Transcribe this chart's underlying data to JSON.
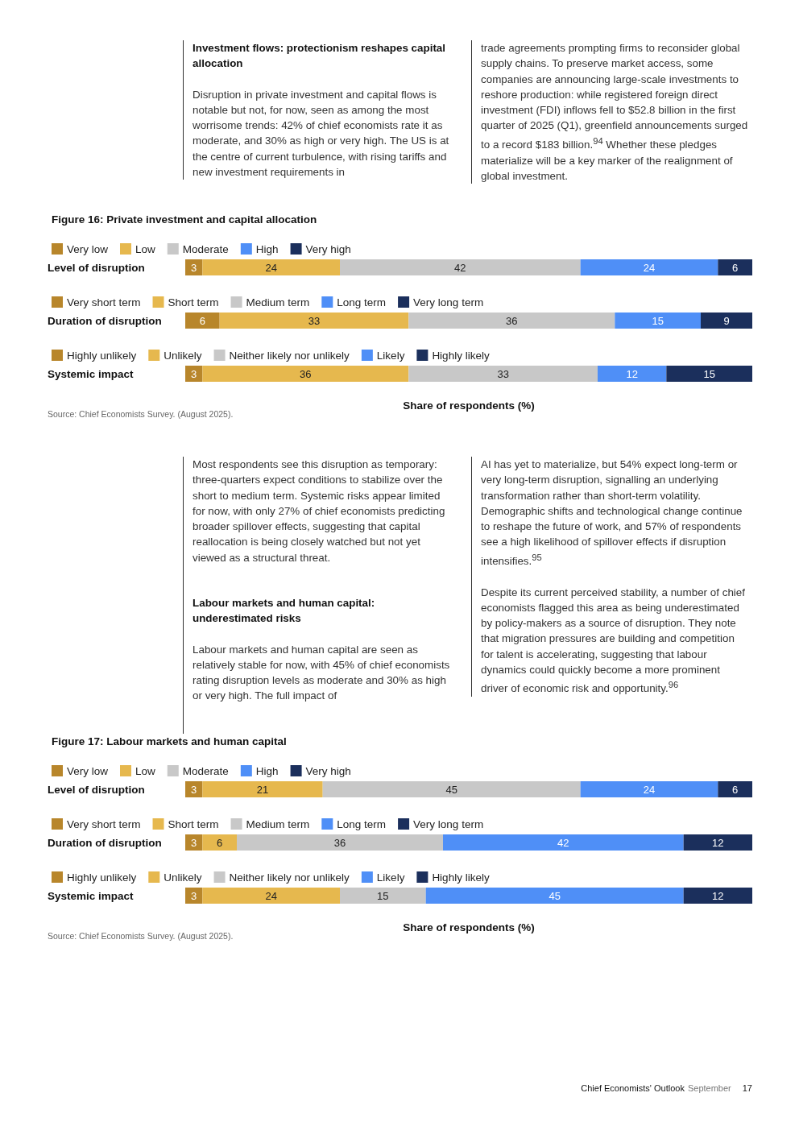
{
  "chart_data": [
    {
      "type": "other",
      "title": "Investment flows: protectionism reshapes capital allocation",
      "annotations": [
        "Disruption in private investment and capital flows is notable but not, for now, seen as among the most worrisome trends: 42% of chief economists rate it as moderate, and 30% as high or very high. The US is at the centre of current turbulence, with rising tariffs and new investment requirements in"
      ]
    },
    {
      "type": "other",
      "annotations": [
        "trade agreements prompting firms to reconsider global supply chains. To preserve market access, some companies are announcing large-scale investments to reshore production: while registered foreign direct investment (FDI) inflows fell to $52.8 billion in the first quarter of 2025 (Q1), greenfield announcements surged to a record $183 billion.$^{94}$ Whether these pledges materialize will be a key marker of the realignment of global investment."
      ]
    },
    {
      "type": "bar",
      "orientation": "horizontal",
      "stacked": true,
      "data_labels": true,
      "legend": "top left",
      "tick_labels": "y",
      "xlim": [
        0,
        99
      ],
      "title": "Figure 16: Private investment and capital allocation",
      "categories": [
        "Level of disruption"
      ],
      "series": [
        {
          "name": "Very low",
          "color": "#b8862b",
          "values": [
            3
          ]
        },
        {
          "name": "Low",
          "color": "#e6b84e",
          "values": [
            24
          ]
        },
        {
          "name": "Moderate",
          "color": "#c8c8c8",
          "values": [
            42
          ]
        },
        {
          "name": "High",
          "color": "#4f8ff7",
          "values": [
            24
          ]
        },
        {
          "name": "Very high",
          "color": "#1b2f5c",
          "values": [
            6
          ]
        }
      ]
    },
    {
      "type": "bar",
      "orientation": "horizontal",
      "stacked": true,
      "data_labels": true,
      "legend": "top left",
      "tick_labels": "y",
      "xlim": [
        0,
        99
      ],
      "categories": [
        "Duration of disruption"
      ],
      "series": [
        {
          "name": "Very short term",
          "color": "#b8862b",
          "values": [
            6
          ]
        },
        {
          "name": "Short term",
          "color": "#e6b84e",
          "values": [
            33
          ]
        },
        {
          "name": "Medium term",
          "color": "#c8c8c8",
          "values": [
            36
          ]
        },
        {
          "name": "Long term",
          "color": "#4f8ff7",
          "values": [
            15
          ]
        },
        {
          "name": "Very long term",
          "color": "#1b2f5c",
          "values": [
            9
          ]
        }
      ]
    },
    {
      "type": "bar",
      "orientation": "horizontal",
      "stacked": true,
      "data_labels": true,
      "legend": "top left",
      "tick_labels": "y",
      "xlim": [
        0,
        99
      ],
      "xlabel": "Share of respondents (%)",
      "annotations": [
        "Source: Chief Economists Survey. (August 2025)."
      ],
      "categories": [
        "Systemic impact"
      ],
      "series": [
        {
          "name": "Highly unlikely",
          "color": "#b8862b",
          "values": [
            3
          ]
        },
        {
          "name": "Unlikely",
          "color": "#e6b84e",
          "values": [
            36
          ]
        },
        {
          "name": "Neither likely nor unlikely",
          "color": "#c8c8c8",
          "values": [
            33
          ]
        },
        {
          "name": "Likely",
          "color": "#4f8ff7",
          "values": [
            12
          ]
        },
        {
          "name": "Highly likely",
          "color": "#1b2f5c",
          "values": [
            15
          ]
        }
      ]
    },
    {
      "type": "other",
      "annotations": [
        "Most respondents see this disruption as temporary: three-quarters expect conditions to stabilize over the short to medium term. Systemic risks appear limited for now, with only 27% of chief economists predicting broader spillover effects, suggesting that capital reallocation is being closely watched but not yet viewed as a structural threat."
      ]
    },
    {
      "type": "other",
      "title": "Labour markets and human capital: underestimated risks",
      "annotations": [
        "Labour markets and human capital are seen as relatively stable for now, with 45% of chief economists rating disruption levels as moderate and 30% as high or very high. The full impact of"
      ]
    },
    {
      "type": "other",
      "annotations": [
        "AI has yet to materialize, but 54% expect long-term or very long-term disruption, signalling an underlying transformation rather than short-term volatility. Demographic shifts and technological change continue to reshape the future of work, and 57% of respondents see a high likelihood of spillover effects if disruption intensifies.$^{95}$",
        "Despite its current perceived stability, a number of chief economists flagged this area as being underestimated by policy-makers as a source of disruption. They note that migration pressures are building and competition for talent is accelerating, suggesting that labour dynamics could quickly become a more prominent driver of economic risk and opportunity.$^{96}$"
      ]
    },
    {
      "type": "bar",
      "orientation": "horizontal",
      "stacked": true,
      "data_labels": true,
      "legend": "top left",
      "tick_labels": "y",
      "xlim": [
        0,
        99
      ],
      "title": "Figure 17: Labour markets and human capital",
      "categories": [
        "Level of disruption"
      ],
      "series": [
        {
          "name": "Very low",
          "color": "#b8862b",
          "values": [
            3
          ]
        },
        {
          "name": "Low",
          "color": "#e6b84e",
          "values": [
            21
          ]
        },
        {
          "name": "Moderate",
          "color": "#c8c8c8",
          "values": [
            45
          ]
        },
        {
          "name": "High",
          "color": "#4f8ff7",
          "values": [
            24
          ]
        },
        {
          "name": "Very high",
          "color": "#1b2f5c",
          "values": [
            6
          ]
        }
      ]
    },
    {
      "type": "bar",
      "orientation": "horizontal",
      "stacked": true,
      "data_labels": true,
      "legend": "top left",
      "tick_labels": "y",
      "xlim": [
        0,
        99
      ],
      "categories": [
        "Duration of disruption"
      ],
      "series": [
        {
          "name": "Very short term",
          "color": "#b8862b",
          "values": [
            3
          ]
        },
        {
          "name": "Short term",
          "color": "#e6b84e",
          "values": [
            6
          ]
        },
        {
          "name": "Medium term",
          "color": "#c8c8c8",
          "values": [
            36
          ]
        },
        {
          "name": "Long term",
          "color": "#4f8ff7",
          "values": [
            42
          ]
        },
        {
          "name": "Very long term",
          "color": "#1b2f5c",
          "values": [
            12
          ]
        }
      ]
    },
    {
      "type": "bar",
      "orientation": "horizontal",
      "stacked": true,
      "data_labels": true,
      "legend": "top left",
      "tick_labels": "y",
      "xlim": [
        0,
        99
      ],
      "xlabel": "Share of respondents (%)",
      "annotations": [
        "Source: Chief Economists Survey. (August 2025)."
      ],
      "categories": [
        "Systemic impact"
      ],
      "series": [
        {
          "name": "Highly unlikely",
          "color": "#b8862b",
          "values": [
            3
          ]
        },
        {
          "name": "Unlikely",
          "color": "#e6b84e",
          "values": [
            24
          ]
        },
        {
          "name": "Neither likely nor unlikely",
          "color": "#c8c8c8",
          "values": [
            15
          ]
        },
        {
          "name": "Likely",
          "color": "#4f8ff7",
          "values": [
            45
          ]
        },
        {
          "name": "Highly likely",
          "color": "#1b2f5c",
          "values": [
            12
          ]
        }
      ]
    },
    {
      "type": "other",
      "annotations": [
        "Chief Economists' Outlook",
        "September",
        "17"
      ]
    }
  ]
}
